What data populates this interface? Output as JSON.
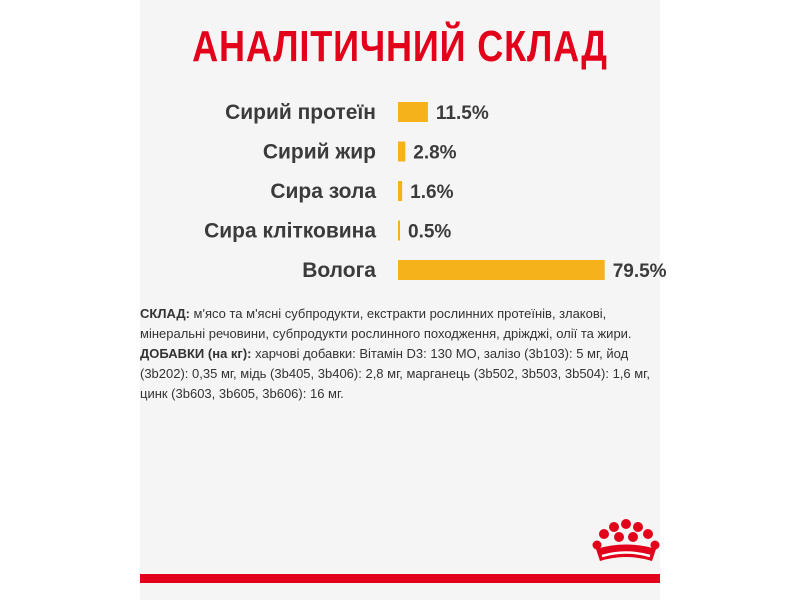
{
  "title": "АНАЛІТИЧНИЙ СКЛАД",
  "colors": {
    "title": "#e2001a",
    "bar": "#f5b21a",
    "brand_red": "#e2001a",
    "background_panel": "#f5f5f5",
    "text": "#3b3b3b"
  },
  "chart_data": {
    "type": "bar",
    "orientation": "horizontal",
    "title": "АНАЛІТИЧНИЙ СКЛАД",
    "categories": [
      "Сирий протеїн",
      "Сирий жир",
      "Сира зола",
      "Сира клітковина",
      "Вологa"
    ],
    "values": [
      11.5,
      2.8,
      1.6,
      0.5,
      79.5
    ],
    "value_labels": [
      "11.5%",
      "2.8%",
      "1.6%",
      "0.5%",
      "79.5%"
    ],
    "unit": "%",
    "xlim": [
      0,
      100
    ],
    "grid": false,
    "legend": "none"
  },
  "composition": {
    "label": "СКЛАД:",
    "text": "м'ясо та м'ясні субпродукти, екстракти рослинних протеїнів, злакові, мінеральні речовини, субпродукти рослинного походження, дріжджі, олії та жири."
  },
  "additives": {
    "label": "ДОБАВКИ (на кг):",
    "text": "харчові добавки: Вітамін D3: 130 МО, залізо (3b103): 5 мг, йод (3b202): 0,35 мг, мідь (3b405, 3b406): 2,8 мг, марганець (3b502, 3b503, 3b504): 1,6 мг, цинк (3b603, 3b605, 3b606): 16 мг."
  },
  "logo": {
    "icon": "crown-icon"
  }
}
